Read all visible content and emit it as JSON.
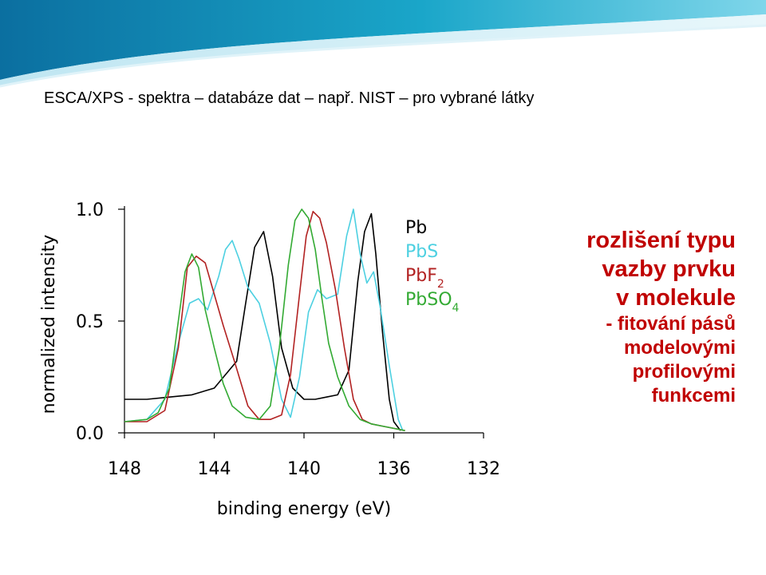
{
  "slide": {
    "title": "ESCA/XPS  - spektra – databáze dat – např. NIST – pro vybrané látky",
    "accent_color": "#1aa6c9"
  },
  "notes": [
    "rozlišení typu",
    "vazby prvku",
    "v molekule",
    "- fitování pásů",
    "modelovými",
    "profilovými",
    "funkcemi"
  ],
  "chart_data": {
    "type": "line",
    "xlabel": "binding energy (eV)",
    "ylabel": "normalized intensity",
    "xlim": [
      148,
      132
    ],
    "ylim": [
      0,
      1.0
    ],
    "x_reversed": true,
    "xticks": [
      "148",
      "144",
      "140",
      "136",
      "132"
    ],
    "yticks": [
      "0.0",
      "0.5",
      "1.0"
    ],
    "legend_position": "top-right",
    "series": [
      {
        "name": "Pb",
        "color": "#000000",
        "name_sub": "",
        "x": [
          148,
          147,
          146,
          145,
          144,
          143,
          142.6,
          142.2,
          141.8,
          141.4,
          141,
          140.5,
          140,
          139.5,
          139,
          138.5,
          138,
          137.6,
          137.3,
          137.0,
          136.8,
          136.5,
          136.2,
          136,
          135.7
        ],
        "y": [
          0.15,
          0.15,
          0.16,
          0.17,
          0.2,
          0.32,
          0.58,
          0.83,
          0.9,
          0.7,
          0.38,
          0.2,
          0.15,
          0.15,
          0.16,
          0.17,
          0.28,
          0.68,
          0.9,
          0.98,
          0.8,
          0.45,
          0.15,
          0.05,
          0.01
        ]
      },
      {
        "name": "PbS",
        "color": "#4dd0e1",
        "name_sub": "",
        "x": [
          148,
          147,
          146.2,
          145.6,
          145.1,
          144.7,
          144.3,
          143.8,
          143.5,
          143.2,
          142.9,
          142.5,
          142,
          141.5,
          141,
          140.6,
          140.2,
          139.8,
          139.4,
          139,
          138.5,
          138.1,
          137.8,
          137.5,
          137.2,
          136.9,
          136.6,
          136.2,
          135.8,
          135.6
        ],
        "y": [
          0.05,
          0.06,
          0.15,
          0.4,
          0.58,
          0.6,
          0.55,
          0.7,
          0.82,
          0.86,
          0.78,
          0.65,
          0.58,
          0.4,
          0.15,
          0.07,
          0.25,
          0.54,
          0.64,
          0.6,
          0.62,
          0.88,
          1.0,
          0.8,
          0.67,
          0.72,
          0.56,
          0.3,
          0.06,
          0.01
        ]
      },
      {
        "name": "PbF",
        "color": "#b22222",
        "name_sub": "2",
        "x": [
          148,
          147,
          146.2,
          145.6,
          145.2,
          144.8,
          144.4,
          144,
          143.6,
          143.1,
          142.5,
          142,
          141.5,
          141,
          140.6,
          140.2,
          139.9,
          139.6,
          139.3,
          139,
          138.6,
          138.2,
          137.8,
          137.4,
          137,
          136.5,
          136,
          135.5
        ],
        "y": [
          0.05,
          0.05,
          0.1,
          0.38,
          0.74,
          0.79,
          0.76,
          0.62,
          0.48,
          0.32,
          0.12,
          0.06,
          0.06,
          0.08,
          0.26,
          0.62,
          0.88,
          0.99,
          0.96,
          0.85,
          0.64,
          0.38,
          0.15,
          0.06,
          0.04,
          0.03,
          0.02,
          0.01
        ]
      },
      {
        "name": "PbSO",
        "color": "#33aa33",
        "name_sub": "4",
        "x": [
          148,
          147,
          146.5,
          146,
          145.6,
          145.3,
          145,
          144.7,
          144.4,
          144,
          143.6,
          143.2,
          142.6,
          142,
          141.5,
          141.1,
          140.7,
          140.4,
          140.1,
          139.8,
          139.5,
          139.2,
          138.9,
          138.5,
          138,
          137.5,
          137,
          136.5,
          136,
          135.5
        ],
        "y": [
          0.05,
          0.06,
          0.09,
          0.2,
          0.5,
          0.72,
          0.8,
          0.74,
          0.55,
          0.38,
          0.22,
          0.12,
          0.07,
          0.06,
          0.12,
          0.38,
          0.75,
          0.95,
          1.0,
          0.96,
          0.82,
          0.6,
          0.4,
          0.25,
          0.12,
          0.06,
          0.04,
          0.03,
          0.02,
          0.01
        ]
      }
    ]
  }
}
